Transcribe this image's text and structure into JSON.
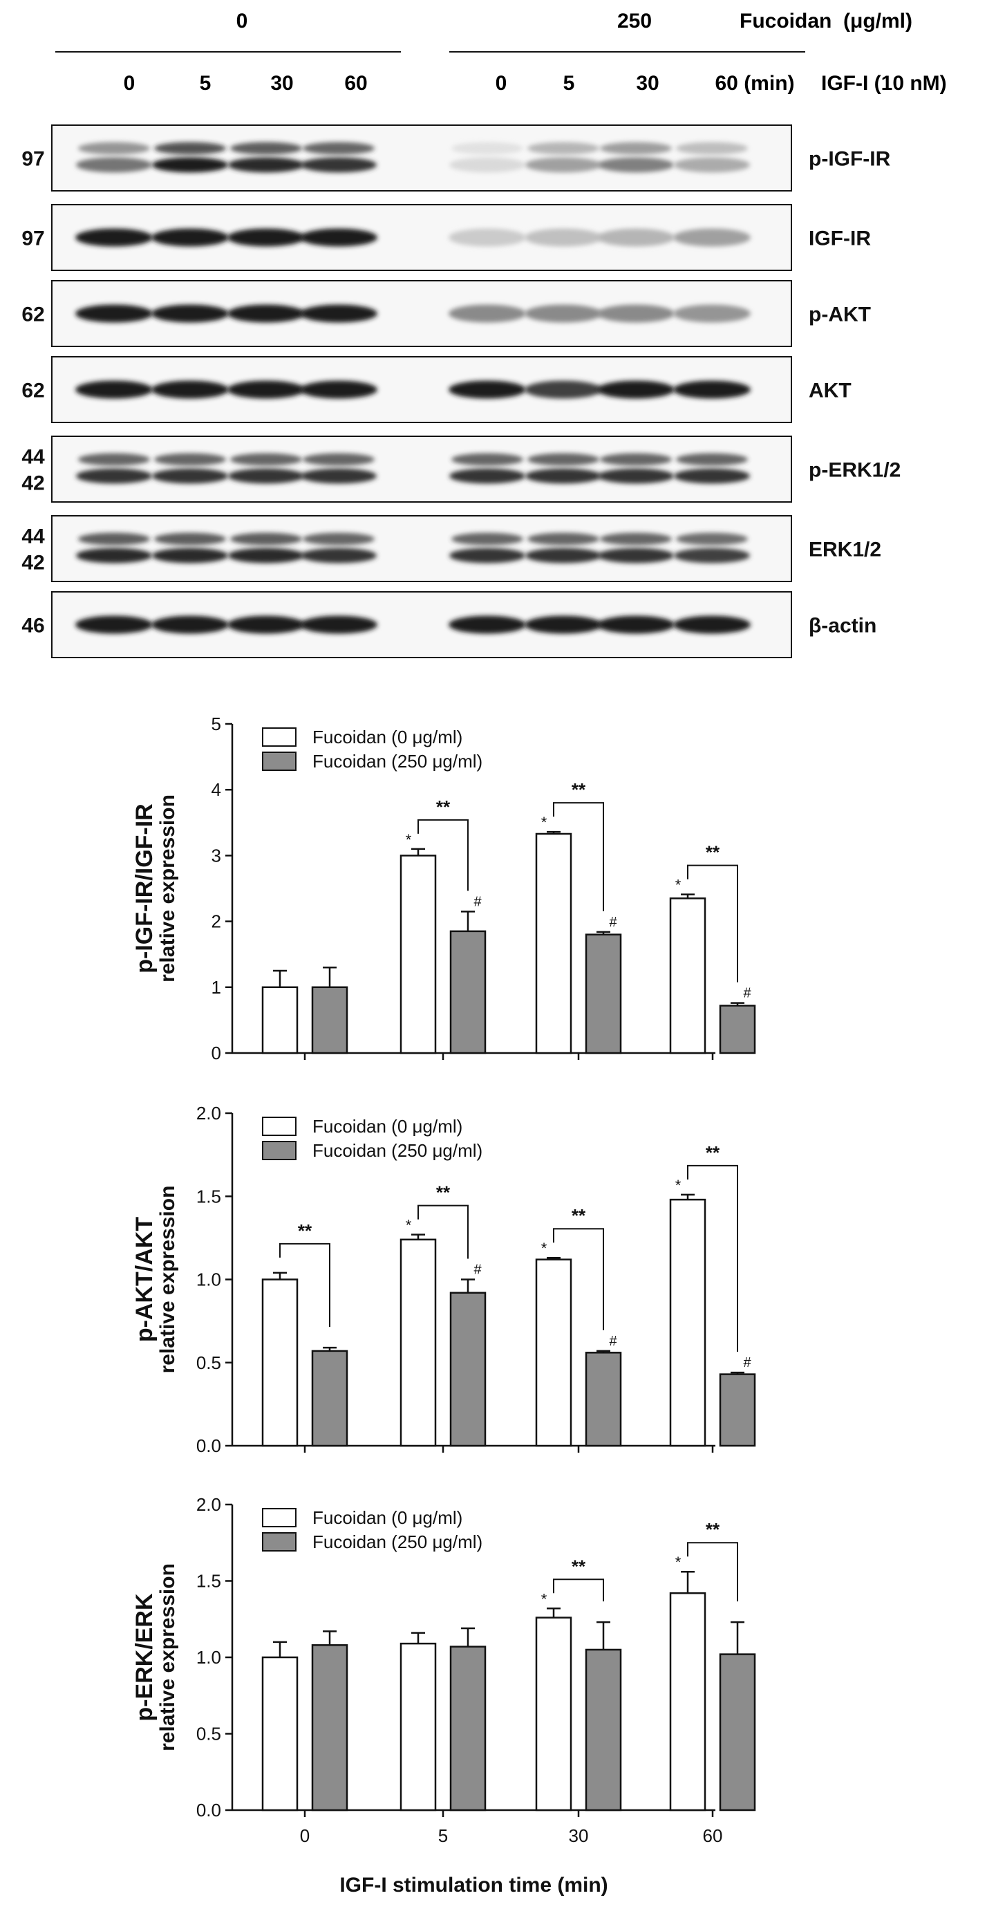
{
  "blot": {
    "header": {
      "fucoidan_levels": [
        "0",
        "250"
      ],
      "fucoidan_label": "Fucoidan  (μg/ml)",
      "times_group1": [
        "0",
        "5",
        "30",
        "60"
      ],
      "times_group2": [
        "0",
        "5",
        "30",
        "60 (min)"
      ],
      "igf_label": "IGF-I (10 nM)"
    },
    "rows": [
      {
        "label": "p-IGF-IR",
        "markers": [
          "97"
        ]
      },
      {
        "label": "IGF-IR",
        "markers": [
          "97"
        ]
      },
      {
        "label": "p-AKT",
        "markers": [
          "62"
        ]
      },
      {
        "label": "AKT",
        "markers": [
          "62"
        ]
      },
      {
        "label": "p-ERK1/2",
        "markers": [
          "44",
          "42"
        ]
      },
      {
        "label": "ERK1/2",
        "markers": [
          "44",
          "42"
        ]
      },
      {
        "label": "β-actin",
        "markers": [
          "46"
        ]
      }
    ],
    "band_intensity": [
      [
        0.55,
        0.95,
        0.9,
        0.85,
        0.08,
        0.35,
        0.5,
        0.3
      ],
      [
        0.95,
        0.95,
        0.95,
        0.95,
        0.15,
        0.2,
        0.25,
        0.35
      ],
      [
        0.95,
        0.95,
        0.95,
        0.95,
        0.45,
        0.45,
        0.45,
        0.4
      ],
      [
        0.95,
        0.95,
        0.95,
        0.95,
        0.95,
        0.8,
        0.95,
        0.95
      ],
      [
        0.85,
        0.85,
        0.85,
        0.85,
        0.85,
        0.85,
        0.85,
        0.85
      ],
      [
        0.9,
        0.9,
        0.9,
        0.85,
        0.85,
        0.85,
        0.85,
        0.8
      ],
      [
        0.95,
        0.95,
        0.95,
        0.95,
        0.95,
        0.95,
        0.95,
        0.95
      ]
    ]
  },
  "chart_data": [
    {
      "type": "bar",
      "ylabel": "p-IGF-IR/IGF-IR",
      "ylabel2": "relative expression",
      "categories": [
        "0",
        "5",
        "30",
        "60"
      ],
      "series": [
        {
          "name": "Fucoidan (0 μg/ml)",
          "values": [
            1.0,
            3.0,
            3.33,
            2.35
          ],
          "errors": [
            0.25,
            0.1,
            0.03,
            0.06
          ]
        },
        {
          "name": "Fucoidan (250 μg/ml)",
          "values": [
            1.0,
            1.85,
            1.8,
            0.72
          ],
          "errors": [
            0.3,
            0.3,
            0.04,
            0.04
          ]
        }
      ],
      "ylim": [
        0,
        5
      ],
      "yticks": [
        "0",
        "1",
        "2",
        "3",
        "4",
        "5"
      ],
      "star_on": [
        1,
        2,
        3
      ],
      "hash_on": [
        1,
        2,
        3
      ],
      "sig_brackets": [
        1,
        2,
        3
      ],
      "sig_label": "**",
      "star_label": "*",
      "hash_label": "#",
      "legend_position": "top-left",
      "show_xticklabels": false
    },
    {
      "type": "bar",
      "ylabel": "p-AKT/AKT",
      "ylabel2": "relative expression",
      "categories": [
        "0",
        "5",
        "30",
        "60"
      ],
      "series": [
        {
          "name": "Fucoidan (0 μg/ml)",
          "values": [
            1.0,
            1.24,
            1.12,
            1.48
          ],
          "errors": [
            0.04,
            0.03,
            0.01,
            0.03
          ]
        },
        {
          "name": "Fucoidan (250 μg/ml)",
          "values": [
            0.57,
            0.92,
            0.56,
            0.43
          ],
          "errors": [
            0.02,
            0.08,
            0.01,
            0.01
          ]
        }
      ],
      "ylim": [
        0,
        2.0
      ],
      "yticks": [
        "0.0",
        "0.5",
        "1.0",
        "1.5",
        "2.0"
      ],
      "star_on": [
        1,
        2,
        3
      ],
      "hash_on": [
        1,
        2,
        3
      ],
      "sig_brackets": [
        0,
        1,
        2,
        3
      ],
      "sig_label": "**",
      "star_label": "*",
      "hash_label": "#",
      "legend_position": "top-left",
      "show_xticklabels": false
    },
    {
      "type": "bar",
      "ylabel": "p-ERK/ERK",
      "ylabel2": "relative expression",
      "xlabel": "IGF-I stimulation time (min)",
      "categories": [
        "0",
        "5",
        "30",
        "60"
      ],
      "series": [
        {
          "name": "Fucoidan (0 μg/ml)",
          "values": [
            1.0,
            1.09,
            1.26,
            1.42
          ],
          "errors": [
            0.1,
            0.07,
            0.06,
            0.14
          ]
        },
        {
          "name": "Fucoidan (250 μg/ml)",
          "values": [
            1.08,
            1.07,
            1.05,
            1.02
          ],
          "errors": [
            0.09,
            0.12,
            0.18,
            0.21
          ]
        }
      ],
      "ylim": [
        0,
        2.0
      ],
      "yticks": [
        "0.0",
        "0.5",
        "1.0",
        "1.5",
        "2.0"
      ],
      "star_on": [
        2,
        3
      ],
      "hash_on": [],
      "sig_brackets": [
        2,
        3
      ],
      "sig_label": "**",
      "star_label": "*",
      "hash_label": "#",
      "legend_position": "top-left",
      "show_xticklabels": true
    }
  ],
  "colors": {
    "series_fill": [
      "#ffffff",
      "#8c8c8c"
    ],
    "ink": "#111111"
  }
}
